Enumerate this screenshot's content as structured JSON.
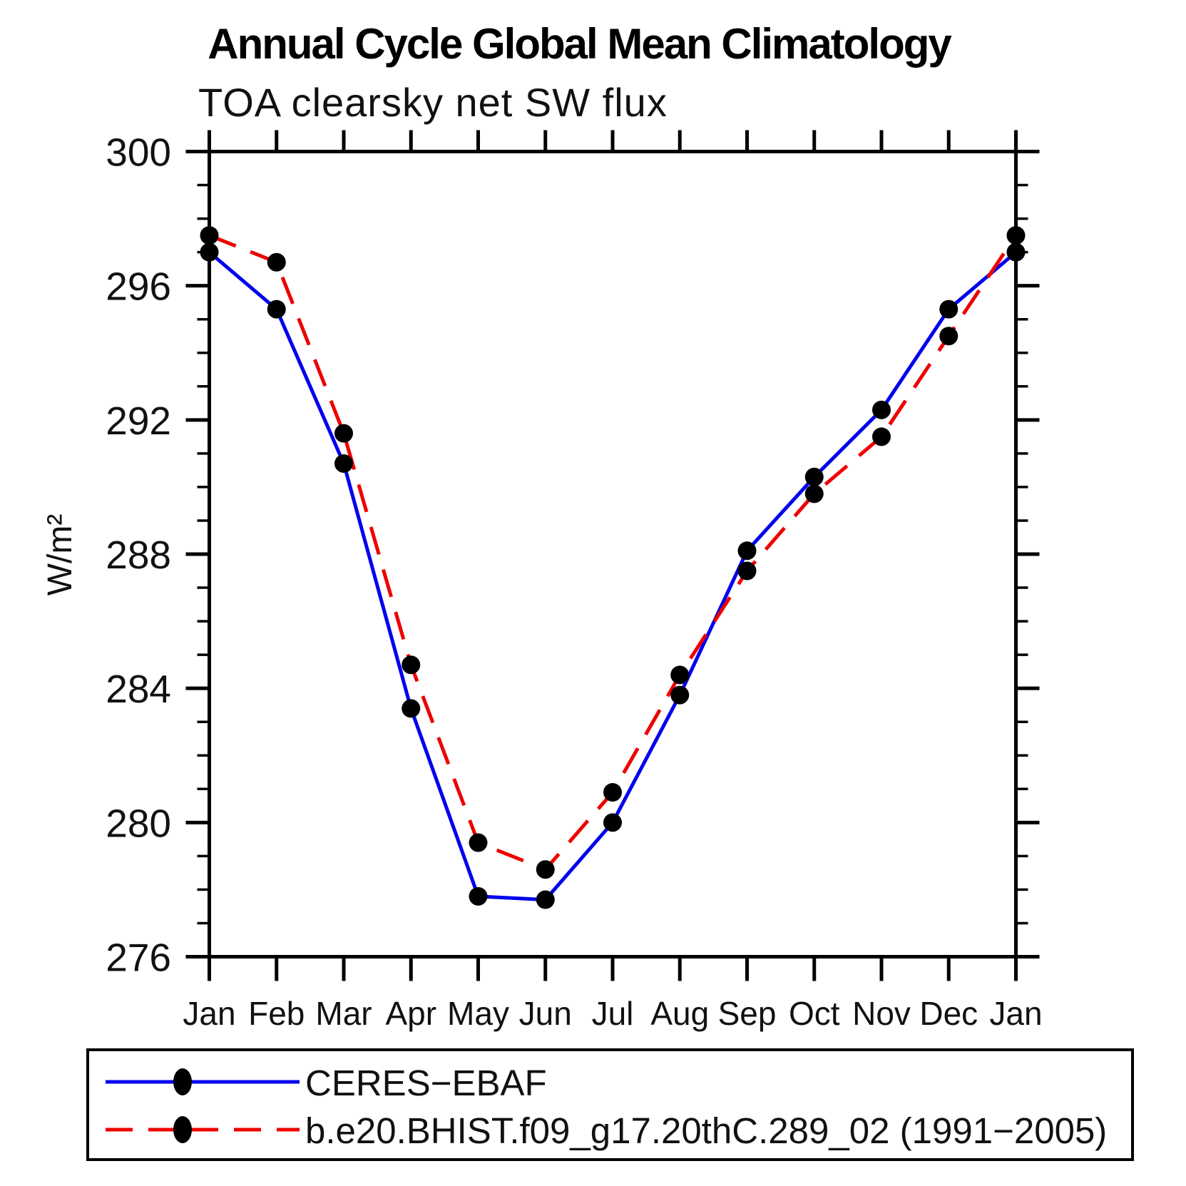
{
  "title": "Annual Cycle Global Mean Climatology",
  "subtitle": "TOA clearsky net SW flux",
  "ylabel": "W/m²",
  "chart_data": {
    "type": "line",
    "x_categories": [
      "Jan",
      "Feb",
      "Mar",
      "Apr",
      "May",
      "Jun",
      "Jul",
      "Aug",
      "Sep",
      "Oct",
      "Nov",
      "Dec",
      "Jan"
    ],
    "series": [
      {
        "name": "CERES−EBAF",
        "color": "#0000ee",
        "line_style": "solid",
        "marker": "circle",
        "marker_color": "#000000",
        "values": [
          297.0,
          295.3,
          290.7,
          283.4,
          277.8,
          277.7,
          280.0,
          283.8,
          288.1,
          290.3,
          292.3,
          295.3,
          297.0
        ]
      },
      {
        "name": "b.e20.BHIST.f09_g17.20thC.289_02 (1991−2005)",
        "color": "#ee0000",
        "line_style": "dashed",
        "marker": "circle",
        "marker_color": "#000000",
        "values": [
          297.5,
          296.7,
          291.6,
          284.7,
          279.4,
          278.6,
          280.9,
          284.4,
          287.5,
          289.8,
          291.5,
          294.5,
          297.5
        ]
      }
    ],
    "ylim": [
      276,
      300
    ],
    "y_major_ticks": [
      276,
      280,
      284,
      288,
      292,
      296,
      300
    ],
    "y_minor_step": 1,
    "grid": "off",
    "legend_position": "bottom"
  },
  "legend": {
    "items": [
      {
        "label": "CERES−EBAF"
      },
      {
        "label": "b.e20.BHIST.f09_g17.20thC.289_02 (1991−2005)"
      }
    ]
  }
}
